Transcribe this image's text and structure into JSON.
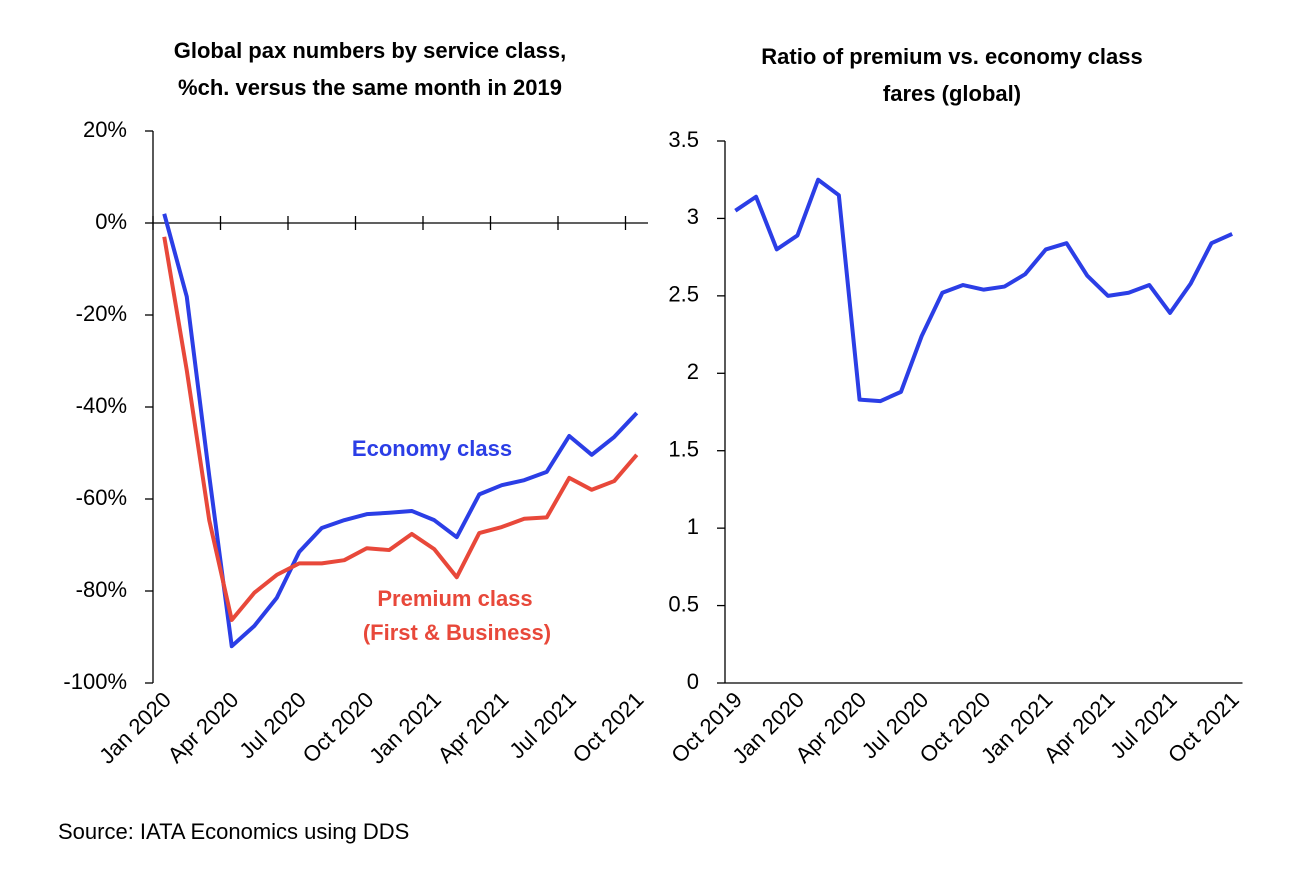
{
  "chart_data": [
    {
      "type": "line",
      "title": [
        "Global pax numbers by service class,",
        "%ch. versus the same month in 2019"
      ],
      "categories": [
        "Jan 2020",
        null,
        null,
        "Apr 2020",
        null,
        null,
        "Jul 2020",
        null,
        null,
        "Oct 2020",
        null,
        null,
        "Jan 2021",
        null,
        null,
        "Apr 2021",
        null,
        null,
        "Jul 2021",
        null,
        null,
        "Oct 2021"
      ],
      "series": [
        {
          "name": "Economy class",
          "color": "#2b3ee6",
          "values": [
            2,
            -16,
            -55,
            -92,
            -87.6,
            -81.5,
            -71.5,
            -66.3,
            -64.6,
            -63.3,
            -63,
            -62.6,
            -64.6,
            -68.3,
            -59,
            -57,
            -55.9,
            -54.1,
            -46.3,
            -50.4,
            -46.5,
            -41.3
          ]
        },
        {
          "name": "Premium class (First & Business)",
          "color": "#e8483a",
          "values": [
            -3,
            -32,
            -64.6,
            -86.3,
            -80.4,
            -76.5,
            -74,
            -74,
            -73.3,
            -70.7,
            -71.1,
            -67.6,
            -70.9,
            -77,
            -67.4,
            -66.1,
            -64.3,
            -64,
            -55.4,
            -58,
            -56.1,
            -50.4
          ]
        }
      ],
      "annotations": [
        {
          "text": "Economy class",
          "color": "#2b3ee6"
        },
        {
          "text": "Premium class",
          "color": "#e8483a"
        },
        {
          "text": "(First & Business)",
          "color": "#e8483a"
        }
      ],
      "ylim": [
        -100,
        20
      ],
      "yticks": [
        {
          "value": -100,
          "label": "-100%"
        },
        {
          "value": -80,
          "label": "-80%"
        },
        {
          "value": -60,
          "label": "-60%"
        },
        {
          "value": -40,
          "label": "-40%"
        },
        {
          "value": -20,
          "label": "-20%"
        },
        {
          "value": 0,
          "label": "0%"
        },
        {
          "value": 20,
          "label": "20%"
        }
      ],
      "x_tick_marks": true,
      "grid": false
    },
    {
      "type": "line",
      "title": [
        "Ratio of premium vs. economy class",
        "fares (global)"
      ],
      "categories": [
        "Oct 2019",
        null,
        null,
        "Jan 2020",
        null,
        null,
        "Apr 2020",
        null,
        null,
        "Jul 2020",
        null,
        null,
        "Oct 2020",
        null,
        null,
        "Jan 2021",
        null,
        null,
        "Apr 2021",
        null,
        null,
        "Jul 2021",
        null,
        null,
        "Oct 2021"
      ],
      "series": [
        {
          "name": "Ratio",
          "color": "#2b3ee6",
          "values": [
            3.05,
            3.14,
            2.8,
            2.89,
            3.25,
            3.15,
            1.83,
            1.82,
            1.88,
            2.24,
            2.52,
            2.57,
            2.54,
            2.56,
            2.64,
            2.8,
            2.84,
            2.63,
            2.5,
            2.52,
            2.57,
            2.39,
            2.58,
            2.84,
            2.9
          ]
        }
      ],
      "ylim": [
        0,
        3.5
      ],
      "yticks": [
        0,
        0.5,
        1,
        1.5,
        2,
        2.5,
        3,
        3.5
      ],
      "x_tick_marks": false,
      "grid": false
    }
  ],
  "source": "Source: IATA Economics using DDS"
}
